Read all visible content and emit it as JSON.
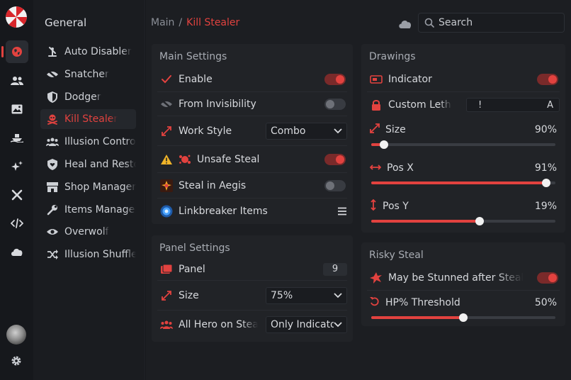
{
  "rail": {
    "logo": "umbrella-logo-icon",
    "items": [
      {
        "icon": "globe-icon",
        "active": true
      },
      {
        "icon": "users-icon"
      },
      {
        "icon": "image-icon"
      },
      {
        "icon": "ship-icon"
      },
      {
        "icon": "sparkles-icon"
      },
      {
        "icon": "tools-icon"
      },
      {
        "icon": "code-icon"
      },
      {
        "icon": "cloud-icon"
      }
    ]
  },
  "sidebar": {
    "heading": "General",
    "items": [
      {
        "label": "Auto Disabler",
        "icon": "disable-icon"
      },
      {
        "label": "Snatcher",
        "icon": "eye-slash-icon"
      },
      {
        "label": "Dodger",
        "icon": "shield-icon"
      },
      {
        "label": "Kill Stealer",
        "icon": "skull-icon",
        "active": true
      },
      {
        "label": "Illusion Control",
        "icon": "users-icon"
      },
      {
        "label": "Heal and Restore",
        "icon": "shield-heart-icon"
      },
      {
        "label": "Shop Manager",
        "icon": "shop-icon"
      },
      {
        "label": "Items Manager",
        "icon": "wrench-icon"
      },
      {
        "label": "Overwolf",
        "icon": "eye-icon"
      },
      {
        "label": "Illusion Shuffle",
        "icon": "shuffle-icon"
      }
    ]
  },
  "breadcrumb": {
    "root": "Main",
    "sep": "/",
    "current": "Kill Stealer"
  },
  "search": {
    "placeholder": "Search"
  },
  "main_settings": {
    "title": "Main Settings",
    "enable": {
      "label": "Enable",
      "on": true
    },
    "from_invisibility": {
      "label": "From Invisibility",
      "on": false
    },
    "work_style": {
      "label": "Work Style",
      "value": "Combo"
    },
    "unsafe_steal": {
      "label": "Unsafe Steal",
      "on": true
    },
    "steal_in_aegis": {
      "label": "Steal in Aegis",
      "on": false
    },
    "linkbreaker": {
      "label": "Linkbreaker Items"
    }
  },
  "panel_settings": {
    "title": "Panel Settings",
    "panel": {
      "label": "Panel",
      "value": "9"
    },
    "size": {
      "label": "Size",
      "value": "75%"
    },
    "all_hero": {
      "label": "All Hero on Steal",
      "value": "Only Indicator"
    }
  },
  "drawings": {
    "title": "Drawings",
    "indicator": {
      "label": "Indicator",
      "on": true
    },
    "custom_lethal": {
      "label": "Custom Lethal",
      "left": "!",
      "right": "A"
    },
    "size": {
      "label": "Size",
      "value": "90%",
      "fraction": 0.07
    },
    "pos_x": {
      "label": "Pos X",
      "value": "91%",
      "fraction": 0.95
    },
    "pos_y": {
      "label": "Pos Y",
      "value": "19%",
      "fraction": 0.59
    }
  },
  "risky_steal": {
    "title": "Risky Steal",
    "stunned": {
      "label": "May be Stunned after Steal",
      "on": true
    },
    "hp_threshold": {
      "label": "HP% Threshold",
      "value": "50%",
      "fraction": 0.5
    }
  },
  "colors": {
    "accent": "#e2423f",
    "bg": "#16181c",
    "panel": "#212327"
  }
}
